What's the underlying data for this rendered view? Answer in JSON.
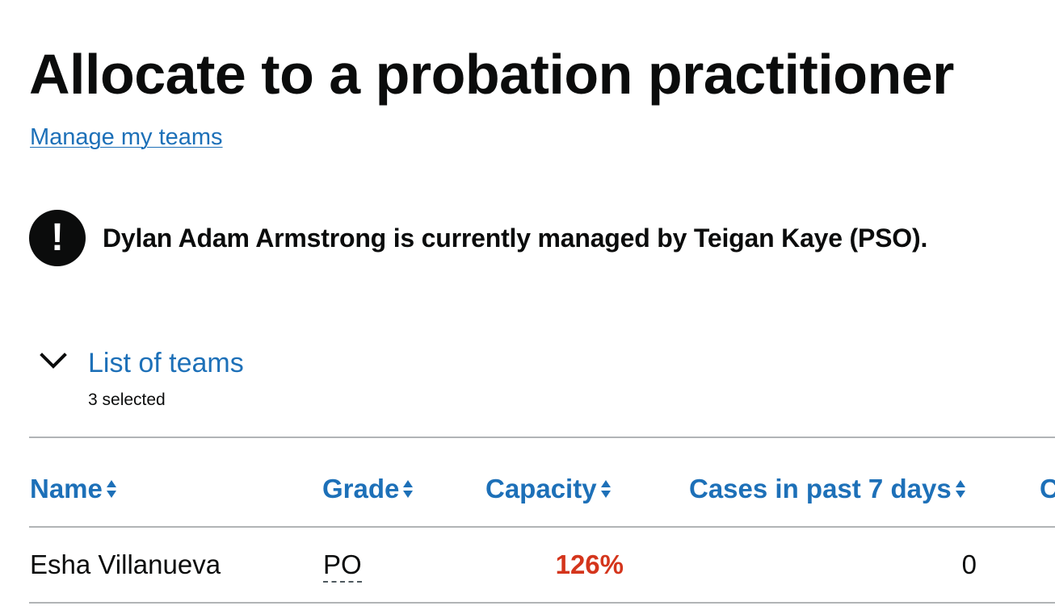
{
  "page": {
    "title": "Allocate to a probation practitioner",
    "manage_link": "Manage my teams"
  },
  "warning": {
    "icon": "!",
    "text": "Dylan Adam Armstrong is currently managed by Teigan Kaye (PSO)."
  },
  "teams_details": {
    "label": "List of teams",
    "selected_text": "3 selected"
  },
  "table": {
    "headers": {
      "name": "Name",
      "grade": "Grade",
      "capacity": "Capacity",
      "cases_past_7_days": "Cases in past 7 days",
      "next_partial": "C"
    },
    "rows": [
      {
        "name": "Esha Villanueva",
        "grade": "PO",
        "capacity": "126%",
        "cases_past_7_days": "0"
      }
    ]
  },
  "colors": {
    "link": "#1d70b8",
    "text": "#0b0c0c",
    "over_capacity": "#d4351c",
    "border": "#b1b4b6"
  }
}
